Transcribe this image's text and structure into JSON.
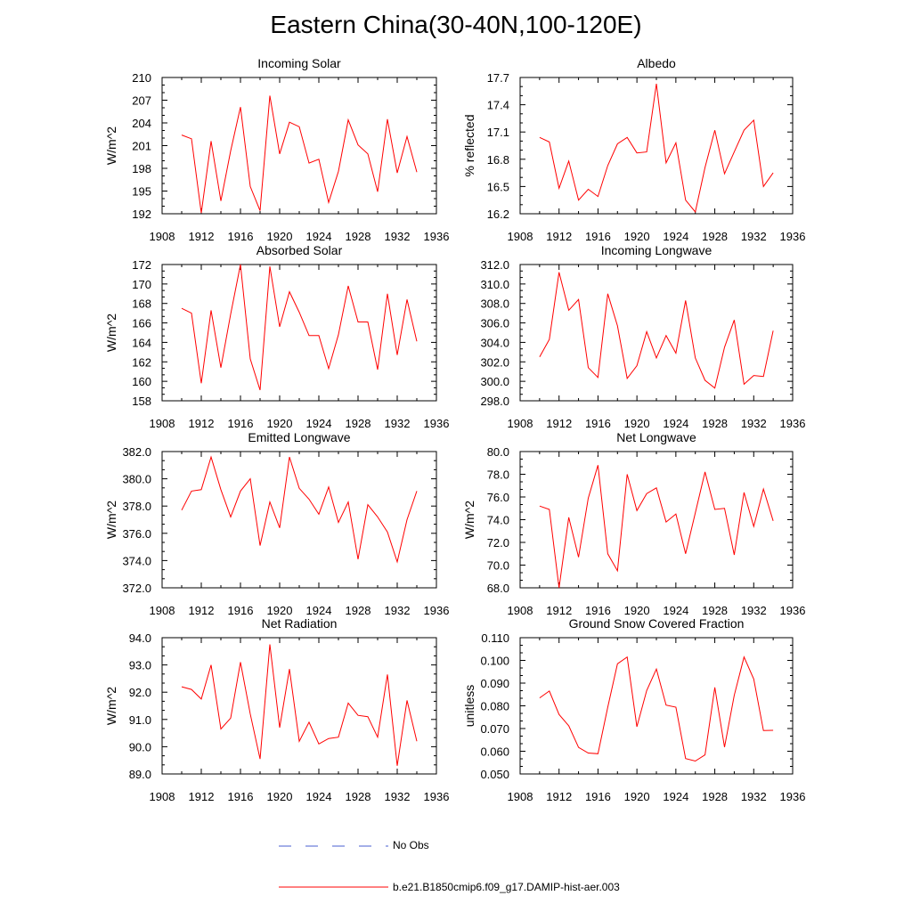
{
  "title": "Eastern China(30-40N,100-120E)",
  "colors": {
    "model": "#ff0000",
    "obs": "#4a5fd0",
    "axis": "#000000"
  },
  "legend": {
    "obs_label": "No Obs",
    "model_label": "b.e21.B1850cmip6.f09_g17.DAMIP-hist-aer.003"
  },
  "chart_data": [
    {
      "type": "line",
      "title": "Incoming Solar",
      "ylabel": "W/m^2",
      "xlim": [
        1908,
        1936
      ],
      "xticks": [
        "1908",
        "1912",
        "1916",
        "1920",
        "1924",
        "1928",
        "1932",
        "1936"
      ],
      "ylim": [
        192,
        210
      ],
      "yticks": [
        "192",
        "195",
        "198",
        "201",
        "204",
        "207",
        "210"
      ],
      "series": [
        {
          "x": [
            1910,
            1911,
            1912,
            1913,
            1914,
            1915,
            1916,
            1917,
            1918,
            1919,
            1920,
            1921,
            1922,
            1923,
            1924,
            1925,
            1926,
            1927,
            1928,
            1929,
            1930,
            1931,
            1932,
            1933,
            1934
          ],
          "values": [
            202.4,
            201.9,
            192.1,
            201.6,
            193.7,
            200.3,
            206.1,
            195.6,
            192.4,
            207.6,
            199.9,
            204.1,
            203.5,
            198.7,
            199.2,
            193.5,
            197.6,
            204.4,
            201.1,
            199.9,
            194.9,
            204.5,
            197.4,
            202.2,
            197.5
          ]
        }
      ]
    },
    {
      "type": "line",
      "title": "Albedo",
      "ylabel": "% reflected",
      "xlim": [
        1908,
        1936
      ],
      "xticks": [
        "1908",
        "1912",
        "1916",
        "1920",
        "1924",
        "1928",
        "1932",
        "1936"
      ],
      "ylim": [
        16.2,
        17.7
      ],
      "yticks": [
        "16.2",
        "16.5",
        "16.8",
        "17.1",
        "17.4",
        "17.7"
      ],
      "series": [
        {
          "x": [
            1910,
            1911,
            1912,
            1913,
            1914,
            1915,
            1916,
            1917,
            1918,
            1919,
            1920,
            1921,
            1922,
            1923,
            1924,
            1925,
            1926,
            1927,
            1928,
            1929,
            1930,
            1931,
            1932,
            1933,
            1934
          ],
          "values": [
            17.04,
            16.99,
            16.48,
            16.78,
            16.35,
            16.47,
            16.39,
            16.73,
            16.97,
            17.04,
            16.87,
            16.88,
            17.63,
            16.76,
            16.98,
            16.35,
            16.22,
            16.71,
            17.12,
            16.64,
            16.88,
            17.12,
            17.23,
            16.5,
            16.65
          ]
        }
      ]
    },
    {
      "type": "line",
      "title": "Absorbed Solar",
      "ylabel": "W/m^2",
      "xlim": [
        1908,
        1936
      ],
      "xticks": [
        "1908",
        "1912",
        "1916",
        "1920",
        "1924",
        "1928",
        "1932",
        "1936"
      ],
      "ylim": [
        158,
        172
      ],
      "yticks": [
        "158",
        "160",
        "162",
        "164",
        "166",
        "168",
        "170",
        "172"
      ],
      "series": [
        {
          "x": [
            1910,
            1911,
            1912,
            1913,
            1914,
            1915,
            1916,
            1917,
            1918,
            1919,
            1920,
            1921,
            1922,
            1923,
            1924,
            1925,
            1926,
            1927,
            1928,
            1929,
            1930,
            1931,
            1932,
            1933,
            1934
          ],
          "values": [
            167.5,
            167.0,
            159.8,
            167.3,
            161.4,
            166.9,
            172.0,
            162.3,
            159.1,
            171.8,
            165.6,
            169.2,
            167.1,
            164.7,
            164.7,
            161.3,
            164.8,
            169.8,
            166.1,
            166.1,
            161.2,
            169.0,
            162.7,
            168.4,
            164.1
          ]
        }
      ]
    },
    {
      "type": "line",
      "title": "Incoming Longwave",
      "ylabel": "",
      "xlim": [
        1908,
        1936
      ],
      "xticks": [
        "1908",
        "1912",
        "1916",
        "1920",
        "1924",
        "1928",
        "1932",
        "1936"
      ],
      "ylim": [
        298.0,
        312.0
      ],
      "yticks": [
        "298.0",
        "300.0",
        "302.0",
        "304.0",
        "306.0",
        "308.0",
        "310.0",
        "312.0"
      ],
      "series": [
        {
          "x": [
            1910,
            1911,
            1912,
            1913,
            1914,
            1915,
            1916,
            1917,
            1918,
            1919,
            1920,
            1921,
            1922,
            1923,
            1924,
            1925,
            1926,
            1927,
            1928,
            1929,
            1930,
            1931,
            1932,
            1933,
            1934
          ],
          "values": [
            302.5,
            304.3,
            311.2,
            307.3,
            308.4,
            301.4,
            300.4,
            309.0,
            305.7,
            300.3,
            301.6,
            305.1,
            302.4,
            304.7,
            302.9,
            308.3,
            302.4,
            300.1,
            299.3,
            303.5,
            306.3,
            299.7,
            300.6,
            300.5,
            305.2
          ]
        }
      ]
    },
    {
      "type": "line",
      "title": "Emitted Longwave",
      "ylabel": "W/m^2",
      "xlim": [
        1908,
        1936
      ],
      "xticks": [
        "1908",
        "1912",
        "1916",
        "1920",
        "1924",
        "1928",
        "1932",
        "1936"
      ],
      "ylim": [
        372.0,
        382.0
      ],
      "yticks": [
        "372.0",
        "374.0",
        "376.0",
        "378.0",
        "380.0",
        "382.0"
      ],
      "series": [
        {
          "x": [
            1910,
            1911,
            1912,
            1913,
            1914,
            1915,
            1916,
            1917,
            1918,
            1919,
            1920,
            1921,
            1922,
            1923,
            1924,
            1925,
            1926,
            1927,
            1928,
            1929,
            1930,
            1931,
            1932,
            1933,
            1934
          ],
          "values": [
            377.7,
            379.1,
            379.2,
            381.6,
            379.2,
            377.2,
            379.1,
            380.0,
            375.1,
            378.3,
            376.4,
            381.6,
            379.3,
            378.5,
            377.4,
            379.4,
            376.8,
            378.3,
            374.1,
            378.1,
            377.2,
            376.1,
            373.9,
            377.0,
            379.1
          ]
        }
      ]
    },
    {
      "type": "line",
      "title": "Net Longwave",
      "ylabel": "W/m^2",
      "xlim": [
        1908,
        1936
      ],
      "xticks": [
        "1908",
        "1912",
        "1916",
        "1920",
        "1924",
        "1928",
        "1932",
        "1936"
      ],
      "ylim": [
        68.0,
        80.0
      ],
      "yticks": [
        "68.0",
        "70.0",
        "72.0",
        "74.0",
        "76.0",
        "78.0",
        "80.0"
      ],
      "series": [
        {
          "x": [
            1910,
            1911,
            1912,
            1913,
            1914,
            1915,
            1916,
            1917,
            1918,
            1919,
            1920,
            1921,
            1922,
            1923,
            1924,
            1925,
            1926,
            1927,
            1928,
            1929,
            1930,
            1931,
            1932,
            1933,
            1934
          ],
          "values": [
            75.2,
            74.9,
            68.0,
            74.2,
            70.7,
            75.9,
            78.8,
            71.0,
            69.5,
            78.0,
            74.8,
            76.3,
            76.8,
            73.8,
            74.5,
            71.0,
            74.6,
            78.2,
            74.9,
            75.0,
            70.9,
            76.4,
            73.4,
            76.7,
            73.9
          ]
        }
      ]
    },
    {
      "type": "line",
      "title": "Net Radiation",
      "ylabel": "W/m^2",
      "xlim": [
        1908,
        1936
      ],
      "xticks": [
        "1908",
        "1912",
        "1916",
        "1920",
        "1924",
        "1928",
        "1932",
        "1936"
      ],
      "ylim": [
        89.0,
        94.0
      ],
      "yticks": [
        "89.0",
        "90.0",
        "91.0",
        "92.0",
        "93.0",
        "94.0"
      ],
      "series": [
        {
          "x": [
            1910,
            1911,
            1912,
            1913,
            1914,
            1915,
            1916,
            1917,
            1918,
            1919,
            1920,
            1921,
            1922,
            1923,
            1924,
            1925,
            1926,
            1927,
            1928,
            1929,
            1930,
            1931,
            1932,
            1933,
            1934
          ],
          "values": [
            92.2,
            92.1,
            91.75,
            93.0,
            90.65,
            91.05,
            93.1,
            91.2,
            89.55,
            93.75,
            90.7,
            92.85,
            90.2,
            90.9,
            90.1,
            90.3,
            90.35,
            91.6,
            91.15,
            91.1,
            90.35,
            92.65,
            89.3,
            91.7,
            90.2
          ]
        }
      ]
    },
    {
      "type": "line",
      "title": "Ground Snow Covered Fraction",
      "ylabel": "unitless",
      "xlim": [
        1908,
        1936
      ],
      "xticks": [
        "1908",
        "1912",
        "1916",
        "1920",
        "1924",
        "1928",
        "1932",
        "1936"
      ],
      "ylim": [
        0.05,
        0.11
      ],
      "yticks": [
        "0.050",
        "0.060",
        "0.070",
        "0.080",
        "0.090",
        "0.100",
        "0.110"
      ],
      "series": [
        {
          "x": [
            1910,
            1911,
            1912,
            1913,
            1914,
            1915,
            1916,
            1917,
            1918,
            1919,
            1920,
            1921,
            1922,
            1923,
            1924,
            1925,
            1926,
            1927,
            1928,
            1929,
            1930,
            1931,
            1932,
            1933,
            1934
          ],
          "values": [
            0.0835,
            0.0865,
            0.0762,
            0.0712,
            0.0617,
            0.0592,
            0.0589,
            0.0794,
            0.0985,
            0.1015,
            0.0708,
            0.0867,
            0.0962,
            0.0803,
            0.0794,
            0.0568,
            0.0557,
            0.0584,
            0.0881,
            0.0618,
            0.0846,
            0.1015,
            0.0918,
            0.0691,
            0.0692
          ]
        }
      ]
    }
  ]
}
